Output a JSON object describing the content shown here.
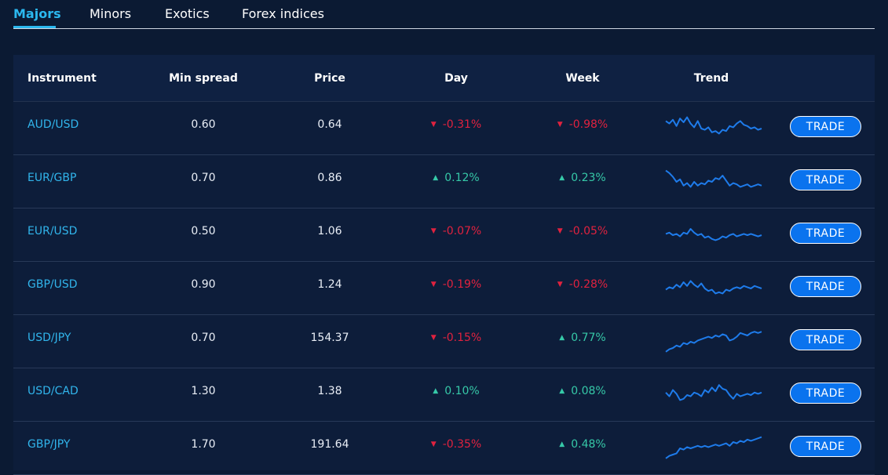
{
  "tabs": [
    {
      "label": "Majors",
      "active": true
    },
    {
      "label": "Minors"
    },
    {
      "label": "Exotics"
    },
    {
      "label": "Forex indices"
    }
  ],
  "columns": {
    "instrument": "Instrument",
    "min_spread": "Min spread",
    "price": "Price",
    "day": "Day",
    "week": "Week",
    "trend": "Trend"
  },
  "rows": [
    {
      "instrument": "AUD/USD",
      "min_spread": "0.60",
      "price": "0.64",
      "day": "-0.31%",
      "day_dir": "down",
      "week": "-0.98%",
      "week_dir": "down",
      "trade": "TRADE",
      "trend": [
        0.8,
        0.7,
        0.85,
        0.6,
        0.9,
        0.75,
        0.95,
        0.7,
        0.55,
        0.8,
        0.5,
        0.45,
        0.55,
        0.35,
        0.4,
        0.3,
        0.45,
        0.4,
        0.6,
        0.55,
        0.7,
        0.8,
        0.65,
        0.6,
        0.5,
        0.55,
        0.45,
        0.5
      ]
    },
    {
      "instrument": "EUR/GBP",
      "min_spread": "0.70",
      "price": "0.86",
      "day": "0.12%",
      "day_dir": "up",
      "week": "0.23%",
      "week_dir": "up",
      "trade": "TRADE",
      "trend": [
        0.95,
        0.85,
        0.7,
        0.5,
        0.6,
        0.35,
        0.45,
        0.3,
        0.5,
        0.35,
        0.45,
        0.4,
        0.55,
        0.5,
        0.65,
        0.6,
        0.75,
        0.55,
        0.35,
        0.45,
        0.4,
        0.3,
        0.35,
        0.4,
        0.3,
        0.35,
        0.4,
        0.35
      ]
    },
    {
      "instrument": "EUR/USD",
      "min_spread": "0.50",
      "price": "1.06",
      "day": "-0.07%",
      "day_dir": "down",
      "week": "-0.05%",
      "week_dir": "down",
      "trade": "TRADE",
      "trend": [
        0.55,
        0.6,
        0.5,
        0.55,
        0.45,
        0.6,
        0.55,
        0.75,
        0.6,
        0.5,
        0.55,
        0.4,
        0.45,
        0.35,
        0.3,
        0.35,
        0.45,
        0.4,
        0.5,
        0.55,
        0.45,
        0.5,
        0.55,
        0.5,
        0.55,
        0.5,
        0.45,
        0.5
      ]
    },
    {
      "instrument": "GBP/USD",
      "min_spread": "0.90",
      "price": "1.24",
      "day": "-0.19%",
      "day_dir": "down",
      "week": "-0.28%",
      "week_dir": "down",
      "trade": "TRADE",
      "trend": [
        0.45,
        0.55,
        0.5,
        0.65,
        0.55,
        0.75,
        0.6,
        0.8,
        0.65,
        0.55,
        0.7,
        0.5,
        0.4,
        0.45,
        0.3,
        0.35,
        0.3,
        0.45,
        0.4,
        0.5,
        0.55,
        0.5,
        0.6,
        0.55,
        0.5,
        0.6,
        0.55,
        0.5
      ]
    },
    {
      "instrument": "USD/JPY",
      "min_spread": "0.70",
      "price": "154.37",
      "day": "-0.15%",
      "day_dir": "down",
      "week": "0.77%",
      "week_dir": "up",
      "trade": "TRADE",
      "trend": [
        0.1,
        0.2,
        0.25,
        0.35,
        0.3,
        0.45,
        0.4,
        0.5,
        0.45,
        0.55,
        0.6,
        0.65,
        0.7,
        0.65,
        0.75,
        0.7,
        0.8,
        0.75,
        0.55,
        0.6,
        0.7,
        0.85,
        0.8,
        0.75,
        0.85,
        0.9,
        0.85,
        0.9
      ]
    },
    {
      "instrument": "USD/CAD",
      "min_spread": "1.30",
      "price": "1.38",
      "day": "0.10%",
      "day_dir": "up",
      "week": "0.08%",
      "week_dir": "up",
      "trade": "TRADE",
      "trend": [
        0.6,
        0.45,
        0.7,
        0.55,
        0.3,
        0.35,
        0.5,
        0.45,
        0.6,
        0.55,
        0.45,
        0.7,
        0.6,
        0.8,
        0.65,
        0.9,
        0.75,
        0.7,
        0.5,
        0.35,
        0.55,
        0.45,
        0.5,
        0.55,
        0.5,
        0.6,
        0.55,
        0.6
      ]
    },
    {
      "instrument": "GBP/JPY",
      "min_spread": "1.70",
      "price": "191.64",
      "day": "-0.35%",
      "day_dir": "down",
      "week": "0.48%",
      "week_dir": "up",
      "trade": "TRADE",
      "trend": [
        0.1,
        0.2,
        0.25,
        0.3,
        0.5,
        0.45,
        0.55,
        0.5,
        0.55,
        0.6,
        0.55,
        0.6,
        0.55,
        0.6,
        0.65,
        0.6,
        0.65,
        0.7,
        0.6,
        0.75,
        0.7,
        0.8,
        0.75,
        0.85,
        0.8,
        0.85,
        0.9,
        0.95
      ]
    }
  ],
  "colors": {
    "accent": "#2bb8ef",
    "up": "#36c9a8",
    "down": "#e0223f",
    "trend_line": "#1e7bea",
    "button": "#0a73ee"
  },
  "icons": {
    "up": "triangle-up-icon",
    "down": "triangle-down-icon"
  }
}
